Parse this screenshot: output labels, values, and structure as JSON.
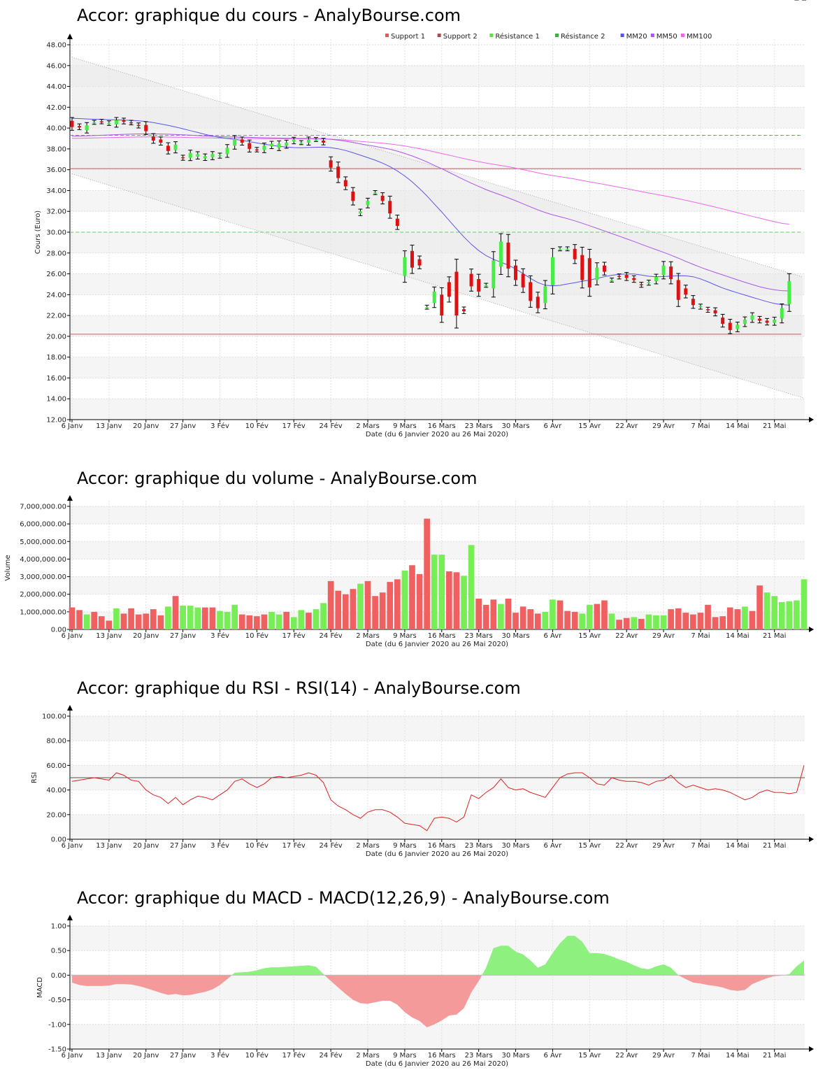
{
  "x_axis": {
    "tick_labels": [
      "6 Janv",
      "13 Janv",
      "20 Janv",
      "27 Janv",
      "3 Fév",
      "10 Fév",
      "17 Fév",
      "24 Fév",
      "2 Mars",
      "9 Mars",
      "16 Mars",
      "23 Mars",
      "30 Mars",
      "6 Avr",
      "15 Avr",
      "22 Avr",
      "29 Avr",
      "7 Mai",
      "14 Mai",
      "21 Mai"
    ],
    "tick_index": [
      0,
      5,
      10,
      15,
      20,
      25,
      30,
      35,
      40,
      45,
      50,
      55,
      60,
      65,
      70,
      75,
      80,
      85,
      90,
      95
    ],
    "label": "Date (du 6 Janvier 2020 au 26 Mai 2020)"
  },
  "legend": [
    {
      "name": "Support 1",
      "color": "#e05a5a"
    },
    {
      "name": "Support 2",
      "color": "#a05050"
    },
    {
      "name": "Résistance 1",
      "color": "#66dd44"
    },
    {
      "name": "Résistance 2",
      "color": "#44aa44"
    },
    {
      "name": "MM20",
      "color": "#5555ee"
    },
    {
      "name": "MM50",
      "color": "#aa55ee"
    },
    {
      "name": "MM100",
      "color": "#ee66ee"
    }
  ],
  "chart_data": [
    {
      "type": "candlestick",
      "title": "Accor: graphique du cours - AnalyBourse.com",
      "ylabel": "Cours (Euro)",
      "ylim": [
        12,
        48
      ],
      "yticks": [
        "12.00",
        "14.00",
        "16.00",
        "18.00",
        "20.00",
        "22.00",
        "24.00",
        "26.00",
        "28.00",
        "30.00",
        "32.00",
        "34.00",
        "36.00",
        "38.00",
        "40.00",
        "42.00",
        "44.00",
        "46.00",
        "48.00"
      ],
      "close": [
        40.1,
        40.05,
        40.25,
        40.55,
        40.6,
        40.5,
        40.75,
        40.6,
        40.5,
        40.2,
        39.7,
        38.8,
        38.6,
        37.8,
        38.4,
        37.1,
        37.6,
        37.5,
        37.3,
        37.5,
        37.4,
        38.1,
        38.95,
        38.6,
        38.0,
        37.9,
        38.3,
        38.5,
        38.5,
        38.6,
        38.9,
        38.6,
        38.9,
        38.9,
        38.6,
        36.2,
        35.2,
        34.4,
        33.0,
        32.0,
        33.0,
        33.8,
        33.0,
        31.8,
        30.6,
        27.6,
        26.6,
        26.8,
        22.8,
        24.3,
        22.0,
        23.8,
        22.0,
        22.4,
        24.8,
        24.3,
        24.9,
        27.3,
        29.1,
        26.5,
        25.4,
        24.7,
        23.4,
        22.7,
        24.8,
        27.6,
        28.4,
        28.4,
        27.4,
        25.4,
        24.7,
        26.6,
        26.2,
        25.4,
        25.7,
        25.6,
        25.4,
        24.9,
        25.2,
        25.7,
        26.8,
        25.5,
        23.5,
        24.0,
        23.0,
        22.9,
        22.5,
        22.2,
        21.2,
        20.6,
        21.1,
        21.6,
        22.0,
        21.5,
        21.3,
        21.6,
        22.7,
        25.3
      ],
      "open": [
        40.7,
        40.2,
        39.8,
        40.55,
        40.65,
        40.45,
        40.35,
        40.75,
        40.55,
        40.3,
        40.3,
        39.2,
        38.9,
        38.3,
        37.9,
        37.2,
        37.15,
        37.25,
        37.1,
        37.2,
        37.3,
        37.5,
        38.3,
        38.9,
        38.55,
        37.95,
        37.9,
        38.25,
        38.1,
        38.3,
        38.7,
        38.6,
        38.6,
        38.9,
        38.8,
        36.9,
        36.3,
        35.0,
        33.9,
        31.8,
        32.6,
        33.8,
        33.5,
        33.0,
        31.3,
        25.8,
        28.2,
        27.4,
        22.8,
        23.2,
        24.0,
        25.2,
        26.2,
        22.6,
        26.0,
        25.5,
        24.9,
        24.6,
        26.7,
        29.0,
        26.8,
        26.0,
        25.2,
        23.8,
        23.2,
        24.9,
        28.4,
        28.4,
        28.4,
        27.8,
        27.5,
        25.4,
        26.8,
        25.4,
        25.8,
        25.9,
        25.6,
        25.0,
        25.1,
        25.3,
        25.9,
        26.7,
        25.4,
        24.6,
        23.6,
        22.8,
        22.6,
        22.5,
        21.8,
        21.3,
        20.7,
        21.2,
        21.6,
        21.7,
        21.5,
        21.3,
        21.7,
        23.1
      ]
    },
    {
      "type": "bar",
      "title": "Accor: graphique du volume - AnalyBourse.com",
      "ylabel": "Volume",
      "ylim": [
        0,
        7000000
      ],
      "yticks": [
        "0.00",
        "1,000,000.00",
        "2,000,000.00",
        "3,000,000.00",
        "4,000,000.00",
        "5,000,000.00",
        "6,000,000.00",
        "7,000,000.00"
      ],
      "values": [
        1250000,
        1100000,
        850000,
        1000000,
        750000,
        500000,
        1200000,
        900000,
        1200000,
        850000,
        900000,
        1150000,
        800000,
        1300000,
        1900000,
        1350000,
        1350000,
        1250000,
        1250000,
        1250000,
        1050000,
        1000000,
        1400000,
        850000,
        800000,
        750000,
        850000,
        1000000,
        850000,
        1000000,
        700000,
        1100000,
        950000,
        1150000,
        1500000,
        2750000,
        2200000,
        2000000,
        2300000,
        2600000,
        2750000,
        1900000,
        2100000,
        2700000,
        2850000,
        3350000,
        3650000,
        3150000,
        6300000,
        4250000,
        4250000,
        3300000,
        3250000,
        3050000,
        4800000,
        1750000,
        1400000,
        1700000,
        1450000,
        1750000,
        950000,
        1300000,
        1150000,
        900000,
        1000000,
        1700000,
        1650000,
        1050000,
        1000000,
        900000,
        1400000,
        1450000,
        1650000,
        900000,
        550000,
        650000,
        700000,
        600000,
        850000,
        800000,
        800000,
        1150000,
        1200000,
        950000,
        850000,
        950000,
        1400000,
        700000,
        750000,
        1250000,
        1150000,
        1300000,
        1050000,
        2500000,
        2100000,
        1900000,
        1550000,
        1600000,
        1650000,
        2850000
      ],
      "up": [
        false,
        false,
        true,
        false,
        false,
        false,
        true,
        false,
        false,
        false,
        false,
        false,
        false,
        true,
        false,
        true,
        true,
        true,
        false,
        false,
        true,
        true,
        true,
        false,
        false,
        false,
        false,
        true,
        true,
        false,
        true,
        true,
        false,
        true,
        true,
        false,
        false,
        false,
        false,
        true,
        false,
        false,
        false,
        false,
        false,
        true,
        false,
        false,
        false,
        true,
        true,
        false,
        false,
        true,
        true,
        false,
        false,
        false,
        true,
        false,
        false,
        false,
        false,
        false,
        true,
        true,
        false,
        false,
        false,
        true,
        true,
        false,
        false,
        true,
        false,
        false,
        true,
        false,
        true,
        true,
        true,
        false,
        false,
        false,
        false,
        false,
        false,
        false,
        false,
        false,
        false,
        true,
        false,
        false,
        true,
        true,
        true,
        true,
        true,
        true
      ]
    },
    {
      "type": "line",
      "title": "Accor: graphique du RSI - RSI(14) - AnalyBourse.com",
      "ylabel": "RSI",
      "ylim": [
        0,
        100
      ],
      "yticks": [
        "0.00",
        "20.00",
        "40.00",
        "60.00",
        "80.00",
        "100.00"
      ],
      "reference_line": 50,
      "values": [
        47,
        48,
        49,
        50,
        49,
        48,
        54,
        52,
        48,
        47,
        40,
        36,
        34,
        29,
        34,
        28,
        32,
        35,
        34,
        32,
        36,
        40,
        47,
        49,
        45,
        42,
        45,
        50,
        51,
        50,
        51,
        52,
        54,
        52,
        46,
        32,
        27,
        24,
        20,
        17,
        22,
        24,
        24,
        22,
        18,
        13,
        12,
        11,
        7,
        17,
        18,
        17,
        14,
        18,
        36,
        33,
        38,
        42,
        49,
        42,
        40,
        41,
        38,
        36,
        34,
        42,
        50,
        53,
        54,
        54,
        50,
        45,
        44,
        50,
        48,
        47,
        47,
        46,
        44,
        47,
        48,
        52,
        46,
        42,
        44,
        42,
        40,
        41,
        40,
        38,
        35,
        32,
        34,
        38,
        40,
        38,
        38,
        37,
        38,
        60
      ]
    },
    {
      "type": "area",
      "title": "Accor: graphique du MACD - MACD(12,26,9) - AnalyBourse.com",
      "ylabel": "MACD",
      "ylim": [
        -1.5,
        1.0
      ],
      "yticks": [
        "-1.50",
        "-1.00",
        "-0.50",
        "0.00",
        "0.50",
        "1.00"
      ],
      "values": [
        -0.15,
        -0.2,
        -0.22,
        -0.22,
        -0.22,
        -0.21,
        -0.18,
        -0.18,
        -0.19,
        -0.22,
        -0.26,
        -0.31,
        -0.36,
        -0.4,
        -0.38,
        -0.41,
        -0.4,
        -0.37,
        -0.34,
        -0.29,
        -0.2,
        -0.08,
        0.05,
        0.06,
        0.07,
        0.1,
        0.14,
        0.16,
        0.16,
        0.17,
        0.18,
        0.19,
        0.2,
        0.17,
        0.02,
        -0.12,
        -0.25,
        -0.38,
        -0.5,
        -0.57,
        -0.58,
        -0.55,
        -0.52,
        -0.52,
        -0.6,
        -0.75,
        -0.86,
        -0.93,
        -1.06,
        -1.0,
        -0.92,
        -0.82,
        -0.8,
        -0.67,
        -0.35,
        -0.12,
        0.15,
        0.55,
        0.6,
        0.6,
        0.48,
        0.42,
        0.3,
        0.15,
        0.22,
        0.45,
        0.65,
        0.8,
        0.8,
        0.68,
        0.45,
        0.45,
        0.43,
        0.38,
        0.32,
        0.27,
        0.2,
        0.14,
        0.12,
        0.18,
        0.22,
        0.15,
        0.0,
        -0.08,
        -0.15,
        -0.17,
        -0.2,
        -0.22,
        -0.25,
        -0.3,
        -0.32,
        -0.3,
        -0.18,
        -0.12,
        -0.06,
        -0.02,
        -0.01,
        0.02,
        0.18,
        0.3
      ]
    }
  ]
}
